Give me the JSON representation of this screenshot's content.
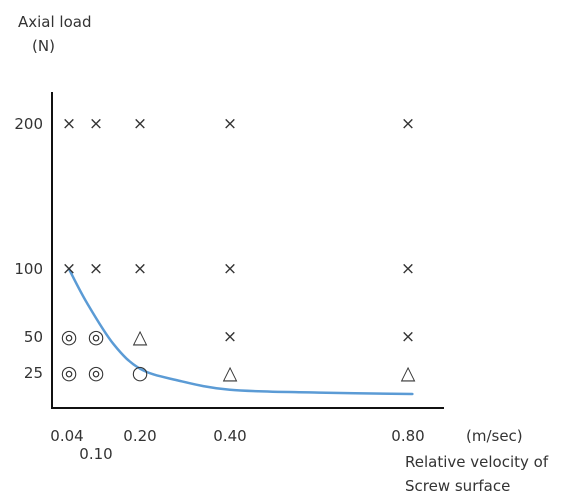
{
  "chart_data": {
    "type": "scatter",
    "ylabel_lines": [
      "Axial load",
      "(N)"
    ],
    "xlabel_unit": "(m/sec)",
    "xlabel_lines": [
      "Relative velocity of",
      "Screw surface"
    ],
    "x_ticks": [
      {
        "value": 0.04,
        "label": "0.04",
        "row": 0
      },
      {
        "value": 0.1,
        "label": "0.10",
        "row": 1
      },
      {
        "value": 0.2,
        "label": "0.20",
        "row": 0
      },
      {
        "value": 0.4,
        "label": "0.40",
        "row": 0
      },
      {
        "value": 0.8,
        "label": "0.80",
        "row": 0
      }
    ],
    "y_ticks": [
      {
        "value": 25,
        "label": "25"
      },
      {
        "value": 50,
        "label": "50"
      },
      {
        "value": 100,
        "label": "100"
      },
      {
        "value": 200,
        "label": "200"
      }
    ],
    "points": [
      {
        "x": 0.04,
        "y": 200,
        "symbol": "×"
      },
      {
        "x": 0.1,
        "y": 200,
        "symbol": "×"
      },
      {
        "x": 0.2,
        "y": 200,
        "symbol": "×"
      },
      {
        "x": 0.4,
        "y": 200,
        "symbol": "×"
      },
      {
        "x": 0.8,
        "y": 200,
        "symbol": "×"
      },
      {
        "x": 0.04,
        "y": 100,
        "symbol": "×"
      },
      {
        "x": 0.1,
        "y": 100,
        "symbol": "×"
      },
      {
        "x": 0.2,
        "y": 100,
        "symbol": "×"
      },
      {
        "x": 0.4,
        "y": 100,
        "symbol": "×"
      },
      {
        "x": 0.8,
        "y": 100,
        "symbol": "×"
      },
      {
        "x": 0.04,
        "y": 50,
        "symbol": "◎"
      },
      {
        "x": 0.1,
        "y": 50,
        "symbol": "◎"
      },
      {
        "x": 0.2,
        "y": 50,
        "symbol": "△"
      },
      {
        "x": 0.4,
        "y": 50,
        "symbol": "×"
      },
      {
        "x": 0.8,
        "y": 50,
        "symbol": "×"
      },
      {
        "x": 0.04,
        "y": 25,
        "symbol": "◎"
      },
      {
        "x": 0.1,
        "y": 25,
        "symbol": "◎"
      },
      {
        "x": 0.2,
        "y": 25,
        "symbol": "○"
      },
      {
        "x": 0.4,
        "y": 25,
        "symbol": "△"
      },
      {
        "x": 0.8,
        "y": 25,
        "symbol": "△"
      }
    ],
    "curve": {
      "color": "#5b9bd5",
      "points": [
        {
          "x": 0.04,
          "y": 100
        },
        {
          "x": 0.08,
          "y": 75
        },
        {
          "x": 0.14,
          "y": 45
        },
        {
          "x": 0.2,
          "y": 28
        },
        {
          "x": 0.28,
          "y": 20
        },
        {
          "x": 0.4,
          "y": 13
        },
        {
          "x": 0.6,
          "y": 11
        },
        {
          "x": 0.81,
          "y": 10
        }
      ]
    },
    "grid": false
  }
}
